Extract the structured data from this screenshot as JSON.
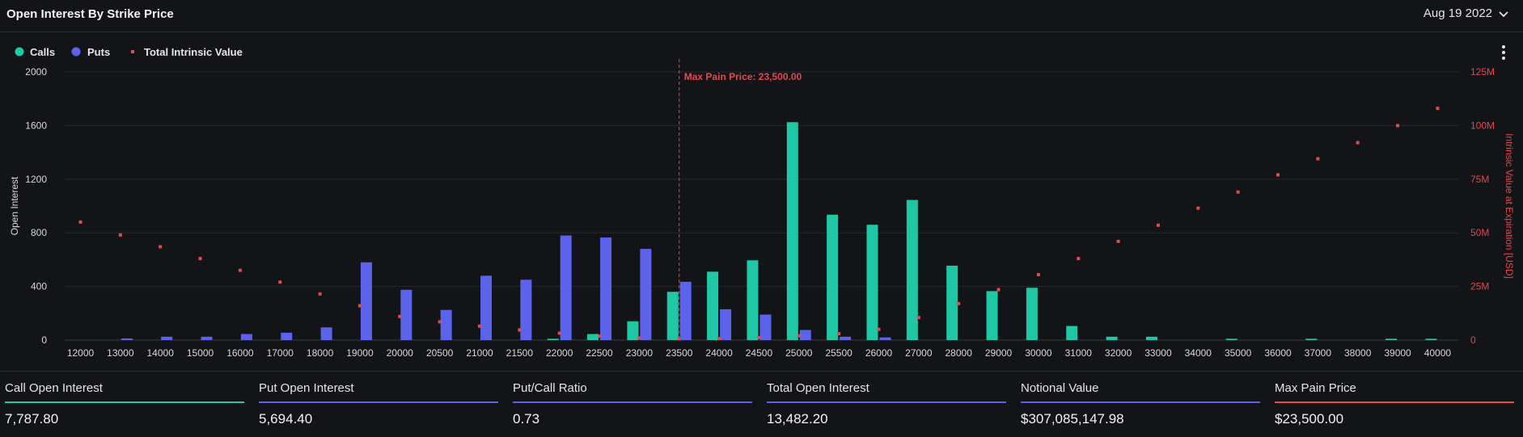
{
  "header": {
    "title": "Open Interest By Strike Price",
    "date_selected": "Aug 19 2022"
  },
  "colors": {
    "calls": "#1ec8a5",
    "puts": "#5b63ea",
    "intrinsic": "#e5484d",
    "grid": "#26282c",
    "text": "#d9d9d9"
  },
  "chart_data": {
    "type": "bar",
    "title": "",
    "xlabel": "",
    "ylabel": "Open Interest",
    "y2label": "Intrinsic Value at Expiration [USD]",
    "ylim": [
      0,
      2000
    ],
    "y2lim": [
      0,
      125000000
    ],
    "yticks": [
      "0",
      "400",
      "800",
      "1200",
      "1600",
      "2000"
    ],
    "y2ticks": [
      "0",
      "25M",
      "50M",
      "75M",
      "100M",
      "125M"
    ],
    "grid": true,
    "legend_position": "top-left",
    "legend": [
      "Calls",
      "Puts",
      "Total Intrinsic Value"
    ],
    "categories": [
      "12000",
      "13000",
      "14000",
      "15000",
      "16000",
      "17000",
      "18000",
      "19000",
      "20000",
      "20500",
      "21000",
      "21500",
      "22000",
      "22500",
      "23000",
      "23500",
      "24000",
      "24500",
      "25000",
      "25500",
      "26000",
      "27000",
      "28000",
      "29000",
      "30000",
      "31000",
      "32000",
      "33000",
      "34000",
      "35000",
      "36000",
      "37000",
      "38000",
      "39000",
      "40000"
    ],
    "series": [
      {
        "name": "Calls",
        "type": "bar",
        "axis": "left",
        "values": [
          0,
          0,
          0,
          0,
          0,
          0,
          0,
          0,
          0,
          0,
          0,
          0,
          10,
          45,
          140,
          360,
          510,
          595,
          1625,
          935,
          860,
          1045,
          555,
          365,
          390,
          105,
          25,
          25,
          0,
          10,
          0,
          10,
          0,
          10,
          10
        ]
      },
      {
        "name": "Puts",
        "type": "bar",
        "axis": "left",
        "values": [
          0,
          12,
          25,
          25,
          45,
          55,
          95,
          580,
          375,
          225,
          480,
          450,
          780,
          765,
          680,
          435,
          230,
          190,
          75,
          25,
          20,
          0,
          0,
          0,
          0,
          0,
          0,
          0,
          0,
          0,
          0,
          0,
          0,
          0,
          0
        ]
      },
      {
        "name": "Total Intrinsic Value",
        "type": "scatter",
        "axis": "right",
        "values": [
          55000000,
          49000000,
          43500000,
          38000000,
          32500000,
          27000000,
          21500000,
          16000000,
          11000000,
          8500000,
          6500000,
          4700000,
          3200000,
          1800000,
          1000000,
          600000,
          700000,
          1200000,
          2000000,
          3000000,
          5000000,
          10500000,
          17000000,
          23500000,
          30500000,
          38000000,
          46000000,
          53500000,
          61500000,
          69000000,
          77000000,
          84500000,
          92000000,
          100000000,
          108000000
        ]
      }
    ],
    "annotations": [
      {
        "text": "Max Pain Price: 23,500.00",
        "x": "23500"
      }
    ]
  },
  "stats": [
    {
      "label": "Call Open Interest",
      "value": "7,787.80",
      "color": "#1ec8a5"
    },
    {
      "label": "Put Open Interest",
      "value": "5,694.40",
      "color": "#5b63ea"
    },
    {
      "label": "Put/Call Ratio",
      "value": "0.73",
      "color": "#5b63ea"
    },
    {
      "label": "Total Open Interest",
      "value": "13,482.20",
      "color": "#5b63ea"
    },
    {
      "label": "Notional Value",
      "value": "$307,085,147.98",
      "color": "#5b63ea"
    },
    {
      "label": "Max Pain Price",
      "value": "$23,500.00",
      "color": "#e5484d"
    }
  ]
}
